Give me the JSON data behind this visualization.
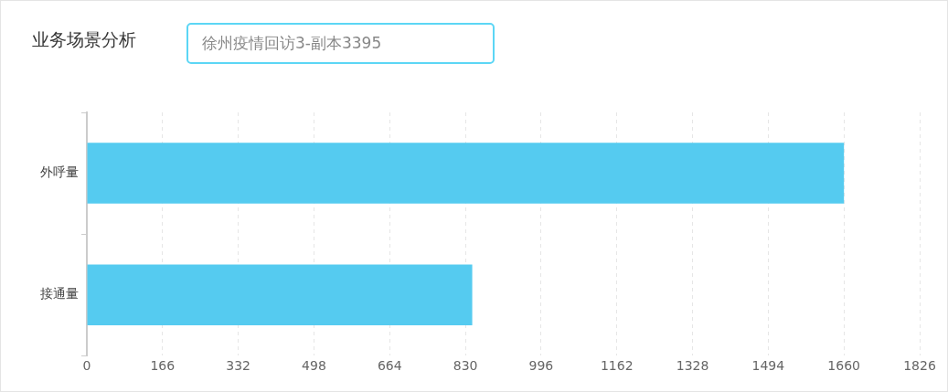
{
  "chart_data": {
    "type": "bar",
    "orientation": "horizontal",
    "title": "业务场景分析",
    "subtitle": "徐州疫情回访3-副本3395",
    "categories": [
      "外呼量",
      "接通量"
    ],
    "series": [
      {
        "color": "#55cbf0",
        "values": [
          1660,
          845
        ]
      }
    ],
    "xlim": [
      0,
      1826
    ],
    "xticks": [
      0,
      166,
      332,
      498,
      664,
      830,
      996,
      1162,
      1328,
      1494,
      1660,
      1826
    ],
    "grid": "x"
  }
}
